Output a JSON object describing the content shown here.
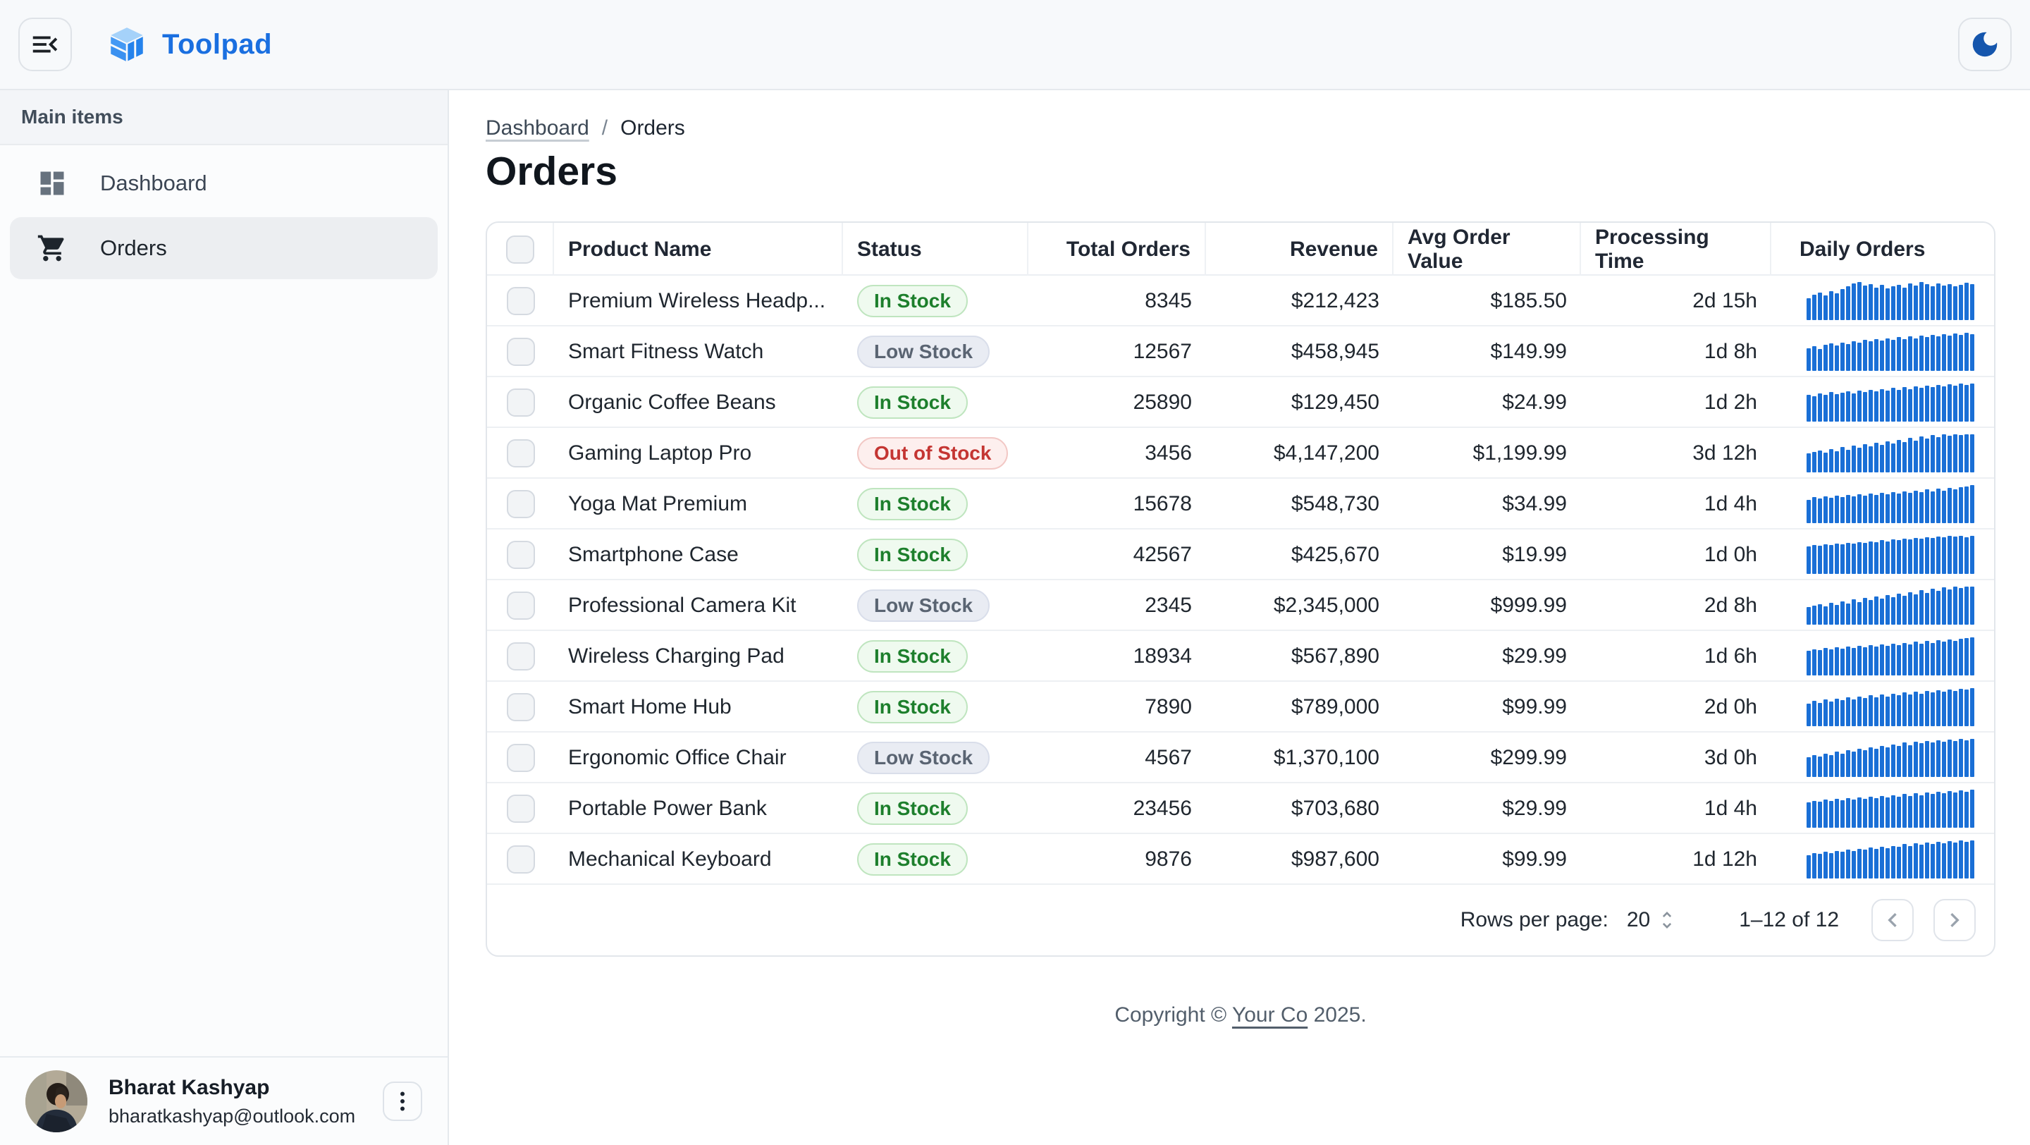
{
  "topbar": {
    "app_name": "Toolpad"
  },
  "sidebar": {
    "section_label": "Main items",
    "items": [
      {
        "label": "Dashboard",
        "icon": "dashboard-icon",
        "selected": false
      },
      {
        "label": "Orders",
        "icon": "cart-icon",
        "selected": true
      }
    ],
    "user": {
      "name": "Bharat Kashyap",
      "email": "bharatkashyap@outlook.com"
    }
  },
  "breadcrumb": {
    "parent": "Dashboard",
    "separator": "/",
    "current": "Orders"
  },
  "page": {
    "title": "Orders"
  },
  "table": {
    "columns": [
      "Product Name",
      "Status",
      "Total Orders",
      "Revenue",
      "Avg Order Value",
      "Processing Time",
      "Daily Orders"
    ],
    "rows": [
      {
        "product": "Premium Wireless Headp...",
        "status": "In Stock",
        "status_variant": "in-stock",
        "total_orders": "8345",
        "revenue": "$212,423",
        "avg_order_value": "$185.50",
        "processing_time": "2d 15h",
        "spark": [
          58,
          66,
          72,
          64,
          76,
          70,
          82,
          88,
          96,
          100,
          90,
          94,
          86,
          92,
          84,
          88,
          92,
          86,
          96,
          90,
          100,
          94,
          88,
          96,
          90,
          94,
          88,
          92,
          98,
          94
        ]
      },
      {
        "product": "Smart Fitness Watch",
        "status": "Low Stock",
        "status_variant": "low-stock",
        "total_orders": "12567",
        "revenue": "$458,945",
        "avg_order_value": "$149.99",
        "processing_time": "1d 8h",
        "spark": [
          60,
          64,
          58,
          68,
          72,
          66,
          74,
          70,
          78,
          74,
          82,
          78,
          84,
          80,
          86,
          82,
          88,
          84,
          90,
          86,
          92,
          88,
          94,
          90,
          96,
          92,
          98,
          94,
          100,
          96
        ]
      },
      {
        "product": "Organic Coffee Beans",
        "status": "In Stock",
        "status_variant": "in-stock",
        "total_orders": "25890",
        "revenue": "$129,450",
        "avg_order_value": "$24.99",
        "processing_time": "1d 2h",
        "spark": [
          70,
          66,
          74,
          70,
          78,
          72,
          76,
          80,
          74,
          82,
          78,
          84,
          80,
          86,
          82,
          88,
          84,
          90,
          86,
          92,
          88,
          94,
          90,
          96,
          92,
          98,
          94,
          100,
          96,
          100
        ]
      },
      {
        "product": "Gaming Laptop Pro",
        "status": "Out of Stock",
        "status_variant": "out-of-stock",
        "total_orders": "3456",
        "revenue": "$4,147,200",
        "avg_order_value": "$1,199.99",
        "processing_time": "3d 12h",
        "spark": [
          50,
          54,
          58,
          52,
          62,
          56,
          66,
          60,
          70,
          64,
          74,
          68,
          78,
          72,
          82,
          76,
          86,
          80,
          90,
          84,
          94,
          88,
          98,
          92,
          100,
          96,
          100,
          98,
          100,
          100
        ]
      },
      {
        "product": "Yoga Mat Premium",
        "status": "In Stock",
        "status_variant": "in-stock",
        "total_orders": "15678",
        "revenue": "$548,730",
        "avg_order_value": "$34.99",
        "processing_time": "1d 4h",
        "spark": [
          62,
          68,
          64,
          70,
          66,
          72,
          68,
          74,
          70,
          76,
          72,
          78,
          74,
          80,
          76,
          82,
          78,
          84,
          80,
          86,
          82,
          88,
          84,
          90,
          86,
          92,
          88,
          94,
          96,
          100
        ]
      },
      {
        "product": "Smartphone Case",
        "status": "In Stock",
        "status_variant": "in-stock",
        "total_orders": "42567",
        "revenue": "$425,670",
        "avg_order_value": "$19.99",
        "processing_time": "1d 0h",
        "spark": [
          72,
          76,
          74,
          78,
          76,
          80,
          78,
          82,
          80,
          84,
          82,
          86,
          84,
          88,
          86,
          90,
          88,
          92,
          90,
          94,
          92,
          96,
          94,
          98,
          96,
          100,
          98,
          100,
          96,
          100
        ]
      },
      {
        "product": "Professional Camera Kit",
        "status": "Low Stock",
        "status_variant": "low-stock",
        "total_orders": "2345",
        "revenue": "$2,345,000",
        "avg_order_value": "$999.99",
        "processing_time": "2d 8h",
        "spark": [
          46,
          50,
          54,
          48,
          58,
          52,
          62,
          56,
          66,
          60,
          70,
          64,
          74,
          68,
          78,
          72,
          82,
          76,
          86,
          80,
          90,
          84,
          94,
          88,
          98,
          92,
          100,
          96,
          100,
          100
        ]
      },
      {
        "product": "Wireless Charging Pad",
        "status": "In Stock",
        "status_variant": "in-stock",
        "total_orders": "18934",
        "revenue": "$567,890",
        "avg_order_value": "$29.99",
        "processing_time": "1d 6h",
        "spark": [
          64,
          68,
          66,
          72,
          68,
          74,
          70,
          76,
          72,
          78,
          74,
          80,
          76,
          82,
          78,
          84,
          80,
          86,
          82,
          88,
          84,
          90,
          86,
          92,
          88,
          94,
          90,
          96,
          98,
          100
        ]
      },
      {
        "product": "Smart Home Hub",
        "status": "In Stock",
        "status_variant": "in-stock",
        "total_orders": "7890",
        "revenue": "$789,000",
        "avg_order_value": "$99.99",
        "processing_time": "2d 0h",
        "spark": [
          60,
          66,
          62,
          70,
          64,
          72,
          68,
          76,
          70,
          78,
          74,
          82,
          76,
          84,
          78,
          86,
          82,
          88,
          84,
          90,
          86,
          92,
          88,
          94,
          90,
          96,
          92,
          98,
          96,
          100
        ]
      },
      {
        "product": "Ergonomic Office Chair",
        "status": "Low Stock",
        "status_variant": "low-stock",
        "total_orders": "4567",
        "revenue": "$1,370,100",
        "avg_order_value": "$299.99",
        "processing_time": "3d 0h",
        "spark": [
          52,
          58,
          54,
          62,
          58,
          66,
          62,
          70,
          66,
          74,
          70,
          78,
          74,
          82,
          78,
          86,
          82,
          90,
          84,
          92,
          88,
          94,
          90,
          96,
          92,
          98,
          94,
          100,
          96,
          100
        ]
      },
      {
        "product": "Portable Power Bank",
        "status": "In Stock",
        "status_variant": "in-stock",
        "total_orders": "23456",
        "revenue": "$703,680",
        "avg_order_value": "$29.99",
        "processing_time": "1d 4h",
        "spark": [
          66,
          70,
          68,
          74,
          70,
          76,
          72,
          78,
          74,
          80,
          76,
          82,
          78,
          84,
          80,
          86,
          82,
          88,
          84,
          90,
          86,
          92,
          88,
          94,
          90,
          96,
          92,
          98,
          94,
          100
        ]
      },
      {
        "product": "Mechanical Keyboard",
        "status": "In Stock",
        "status_variant": "in-stock",
        "total_orders": "9876",
        "revenue": "$987,600",
        "avg_order_value": "$99.99",
        "processing_time": "1d 12h",
        "spark": [
          62,
          66,
          64,
          70,
          66,
          72,
          70,
          76,
          72,
          78,
          76,
          82,
          78,
          84,
          80,
          86,
          84,
          90,
          86,
          92,
          88,
          94,
          90,
          96,
          92,
          98,
          94,
          100,
          96,
          100
        ]
      }
    ]
  },
  "pagination": {
    "rows_per_page_label": "Rows per page:",
    "rows_per_page_value": "20",
    "range_label": "1–12 of 12"
  },
  "footer": {
    "prefix": "Copyright © ",
    "link": "Your Co",
    "suffix": " 2025."
  },
  "theme": {
    "accent_blue": "#1a6fd6",
    "brand_blue": "#1a6fe0",
    "moon_blue": "#1556ad",
    "success_text": "#1d7f2c",
    "error_text": "#c43532",
    "neutral_text": "#5a6472"
  }
}
